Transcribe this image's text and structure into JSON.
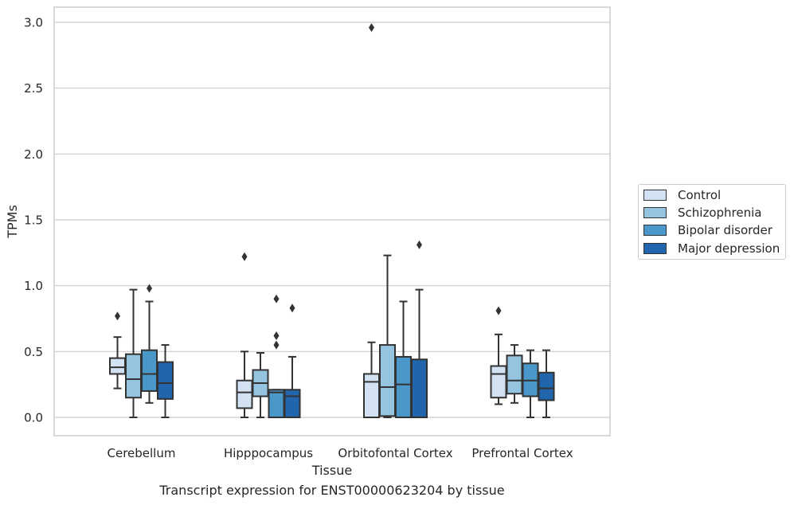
{
  "caption": "Transcript expression for ENST00000623204 by tissue",
  "colors": {
    "hues": [
      "#d2e2f2",
      "#94c4df",
      "#4a98c9",
      "#2166ac"
    ],
    "edge": "#333333",
    "grid": "#cccccc",
    "frame": "#cccccc"
  },
  "chart_data": {
    "type": "box",
    "xlabel": "Tissue",
    "ylabel": "TPMs",
    "ylim": [
      -0.14,
      3.12
    ],
    "yticks": [
      "0.0",
      "0.5",
      "1.0",
      "1.5",
      "2.0",
      "2.5",
      "3.0"
    ],
    "categories": [
      "Cerebellum",
      "Hipppocampus",
      "Orbitofontal Cortex",
      "Prefrontal Cortex"
    ],
    "legend_position": "right",
    "grid": true,
    "series": [
      {
        "name": "Control",
        "boxes": [
          {
            "whisker_low": 0.22,
            "q1": 0.33,
            "median": 0.38,
            "q3": 0.45,
            "whisker_high": 0.61,
            "outliers": [
              0.77
            ]
          },
          {
            "whisker_low": 0.0,
            "q1": 0.07,
            "median": 0.19,
            "q3": 0.28,
            "whisker_high": 0.5,
            "outliers": [
              1.22
            ]
          },
          {
            "whisker_low": 0.0,
            "q1": 0.0,
            "median": 0.27,
            "q3": 0.33,
            "whisker_high": 0.57,
            "outliers": [
              2.96
            ]
          },
          {
            "whisker_low": 0.1,
            "q1": 0.15,
            "median": 0.33,
            "q3": 0.39,
            "whisker_high": 0.63,
            "outliers": [
              0.81
            ]
          }
        ]
      },
      {
        "name": "Schizophrenia",
        "boxes": [
          {
            "whisker_low": 0.0,
            "q1": 0.15,
            "median": 0.29,
            "q3": 0.48,
            "whisker_high": 0.97,
            "outliers": []
          },
          {
            "whisker_low": 0.0,
            "q1": 0.16,
            "median": 0.26,
            "q3": 0.36,
            "whisker_high": 0.49,
            "outliers": []
          },
          {
            "whisker_low": 0.0,
            "q1": 0.01,
            "median": 0.23,
            "q3": 0.55,
            "whisker_high": 1.23,
            "outliers": []
          },
          {
            "whisker_low": 0.11,
            "q1": 0.18,
            "median": 0.28,
            "q3": 0.47,
            "whisker_high": 0.55,
            "outliers": []
          }
        ]
      },
      {
        "name": "Bipolar disorder",
        "boxes": [
          {
            "whisker_low": 0.11,
            "q1": 0.2,
            "median": 0.33,
            "q3": 0.51,
            "whisker_high": 0.88,
            "outliers": [
              0.98
            ]
          },
          {
            "whisker_low": 0.0,
            "q1": 0.0,
            "median": 0.19,
            "q3": 0.21,
            "whisker_high": 0.21,
            "outliers": [
              0.9,
              0.62,
              0.55
            ]
          },
          {
            "whisker_low": 0.0,
            "q1": 0.0,
            "median": 0.25,
            "q3": 0.46,
            "whisker_high": 0.88,
            "outliers": []
          },
          {
            "whisker_low": 0.0,
            "q1": 0.16,
            "median": 0.28,
            "q3": 0.41,
            "whisker_high": 0.51,
            "outliers": []
          }
        ]
      },
      {
        "name": "Major depression",
        "boxes": [
          {
            "whisker_low": 0.0,
            "q1": 0.14,
            "median": 0.26,
            "q3": 0.42,
            "whisker_high": 0.55,
            "outliers": []
          },
          {
            "whisker_low": 0.0,
            "q1": 0.0,
            "median": 0.16,
            "q3": 0.21,
            "whisker_high": 0.46,
            "outliers": [
              0.83
            ]
          },
          {
            "whisker_low": 0.0,
            "q1": 0.0,
            "median": 0.0,
            "q3": 0.44,
            "whisker_high": 0.97,
            "outliers": [
              1.31
            ]
          },
          {
            "whisker_low": 0.0,
            "q1": 0.13,
            "median": 0.22,
            "q3": 0.34,
            "whisker_high": 0.51,
            "outliers": []
          }
        ]
      }
    ]
  }
}
